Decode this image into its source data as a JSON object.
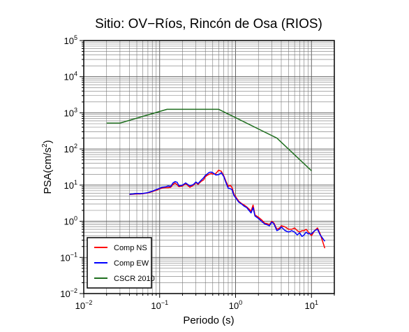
{
  "chart_data": {
    "type": "line",
    "title": "Sitio: OV−Ríos, Rincón de Osa (RIOS)",
    "xlabel": "Periodo (s)",
    "ylabel": "PSA(cm/s²)",
    "ylabel_base": "PSA(cm/s",
    "ylabel_sup": "2",
    "ylabel_end": ")",
    "xscale": "log",
    "yscale": "log",
    "xlim": [
      0.01,
      20
    ],
    "ylim": [
      0.01,
      100000
    ],
    "grid": true,
    "legend_position": "bottom-left",
    "x_ticks": [
      {
        "value": 0.01,
        "base": "10",
        "exp": "−2"
      },
      {
        "value": 0.1,
        "base": "10",
        "exp": "−1"
      },
      {
        "value": 1,
        "base": "10",
        "exp": "0"
      },
      {
        "value": 10,
        "base": "10",
        "exp": "1"
      }
    ],
    "y_ticks": [
      {
        "value": 0.01,
        "base": "10",
        "exp": "−2"
      },
      {
        "value": 0.1,
        "base": "10",
        "exp": "−1"
      },
      {
        "value": 1,
        "base": "10",
        "exp": "0"
      },
      {
        "value": 10,
        "base": "10",
        "exp": "1"
      },
      {
        "value": 100,
        "base": "10",
        "exp": "2"
      },
      {
        "value": 1000,
        "base": "10",
        "exp": "3"
      },
      {
        "value": 10000,
        "base": "10",
        "exp": "4"
      },
      {
        "value": 100000,
        "base": "10",
        "exp": "5"
      }
    ],
    "series": [
      {
        "name": "Comp NS",
        "color": "#ff0000",
        "x": [
          0.04,
          0.045,
          0.05,
          0.055,
          0.06,
          0.07,
          0.08,
          0.09,
          0.1,
          0.11,
          0.12,
          0.13,
          0.14,
          0.15,
          0.16,
          0.17,
          0.18,
          0.2,
          0.22,
          0.25,
          0.28,
          0.3,
          0.32,
          0.35,
          0.38,
          0.4,
          0.42,
          0.45,
          0.48,
          0.5,
          0.55,
          0.6,
          0.65,
          0.7,
          0.75,
          0.8,
          0.85,
          0.9,
          0.95,
          1.0,
          1.1,
          1.2,
          1.3,
          1.4,
          1.5,
          1.6,
          1.7,
          1.8,
          2.0,
          2.2,
          2.4,
          2.6,
          2.8,
          3.0,
          3.2,
          3.5,
          3.8,
          4.0,
          4.5,
          5.0,
          5.5,
          6.0,
          6.5,
          7.0,
          7.5,
          8.0,
          8.5,
          9.0,
          10.0,
          11.0,
          12.0,
          13.0,
          15.0
        ],
        "y": [
          5.5,
          5.6,
          5.7,
          5.7,
          5.8,
          6.1,
          6.6,
          7.2,
          7.9,
          8.4,
          8.5,
          8.5,
          8.7,
          10.5,
          11.4,
          10.2,
          9.0,
          9.5,
          11.0,
          8.7,
          10.0,
          11.8,
          10.5,
          12.5,
          14.0,
          17.0,
          18.5,
          20.0,
          21.0,
          20.0,
          21.0,
          26.0,
          24.0,
          18.0,
          12.5,
          9.2,
          10.0,
          8.5,
          5.7,
          4.8,
          3.6,
          3.1,
          2.8,
          2.5,
          2.2,
          1.9,
          2.8,
          1.5,
          1.3,
          1.1,
          0.9,
          0.85,
          0.8,
          1.0,
          0.9,
          0.6,
          0.65,
          0.75,
          0.7,
          0.6,
          0.6,
          0.65,
          0.55,
          0.5,
          0.55,
          0.55,
          0.6,
          0.52,
          0.4,
          0.55,
          0.65,
          0.45,
          0.18
        ]
      },
      {
        "name": "Comp EW",
        "color": "#0000ff",
        "x": [
          0.04,
          0.045,
          0.05,
          0.055,
          0.06,
          0.07,
          0.08,
          0.09,
          0.1,
          0.11,
          0.12,
          0.13,
          0.14,
          0.15,
          0.16,
          0.17,
          0.18,
          0.2,
          0.22,
          0.25,
          0.28,
          0.3,
          0.32,
          0.35,
          0.38,
          0.4,
          0.42,
          0.45,
          0.48,
          0.5,
          0.55,
          0.6,
          0.65,
          0.7,
          0.75,
          0.8,
          0.85,
          0.9,
          0.95,
          1.0,
          1.1,
          1.2,
          1.3,
          1.4,
          1.5,
          1.6,
          1.7,
          1.8,
          2.0,
          2.2,
          2.4,
          2.6,
          2.8,
          3.0,
          3.2,
          3.5,
          3.8,
          4.0,
          4.5,
          5.0,
          5.5,
          6.0,
          6.5,
          7.0,
          7.5,
          8.0,
          8.5,
          9.0,
          10.0,
          11.0,
          12.0,
          13.0,
          15.0
        ],
        "y": [
          5.6,
          5.7,
          5.9,
          5.8,
          5.9,
          6.2,
          6.8,
          7.5,
          8.2,
          8.8,
          9.0,
          9.5,
          9.2,
          11.5,
          12.5,
          12.0,
          9.5,
          10.0,
          11.5,
          9.5,
          10.5,
          12.2,
          11.0,
          13.5,
          16.0,
          18.5,
          20.0,
          22.5,
          23.0,
          22.0,
          19.0,
          19.5,
          22.0,
          17.0,
          11.5,
          8.2,
          8.0,
          7.5,
          5.2,
          4.5,
          3.4,
          3.0,
          2.6,
          2.4,
          2.0,
          1.7,
          2.4,
          1.4,
          1.2,
          1.0,
          0.85,
          0.8,
          0.75,
          0.95,
          0.85,
          0.55,
          0.6,
          0.7,
          0.55,
          0.5,
          0.55,
          0.5,
          0.42,
          0.48,
          0.38,
          0.42,
          0.5,
          0.45,
          0.45,
          0.55,
          0.6,
          0.42,
          0.28
        ]
      },
      {
        "name": "CSCR 2010",
        "color": "#1f6f1f",
        "x": [
          0.02,
          0.03,
          0.125,
          0.6,
          3.5,
          10.0
        ],
        "y": [
          520,
          520,
          1250,
          1250,
          200,
          25
        ]
      }
    ]
  }
}
